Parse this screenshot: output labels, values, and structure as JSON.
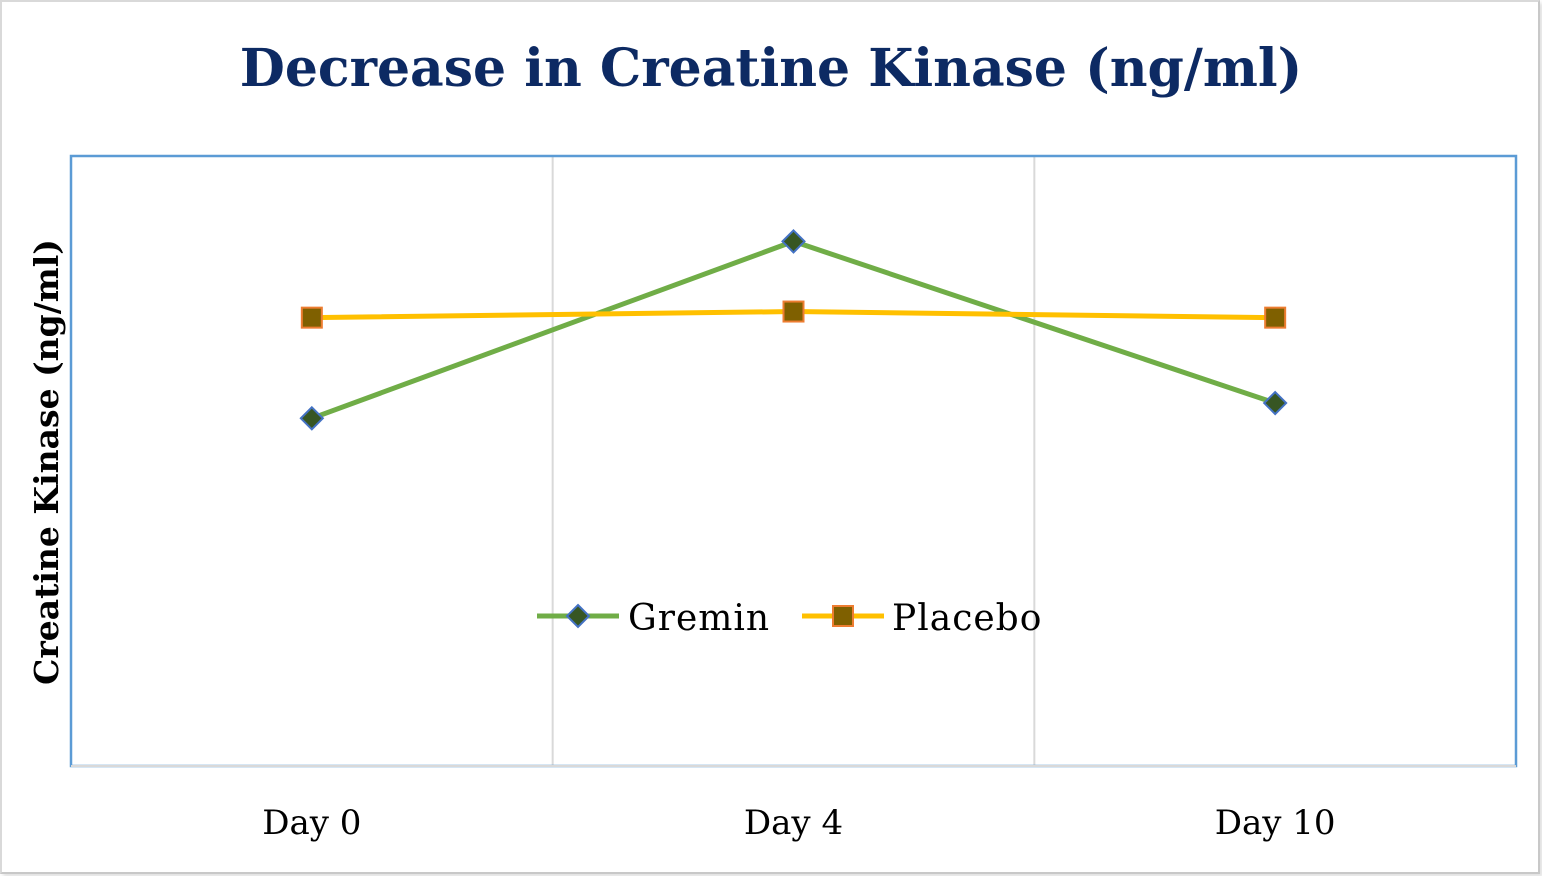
{
  "chart_data": {
    "type": "line",
    "title": "Decrease in Creatine Kinase (ng/ml)",
    "xlabel": "",
    "ylabel": "Creatine Kinase (ng/ml)",
    "categories": [
      "Day 0",
      "Day 4",
      "Day 10"
    ],
    "ylim": [
      0,
      100
    ],
    "grid": "vertical",
    "legend": "inside-bottom-center",
    "series": [
      {
        "name": "Gremin",
        "values": [
          57,
          86,
          59.5
        ],
        "color": "#70ad47",
        "marker": "diamond",
        "marker_fill": "#375623",
        "marker_edge": "#4472c4"
      },
      {
        "name": "Placebo",
        "values": [
          73.5,
          74.5,
          73.5
        ],
        "color": "#ffc000",
        "marker": "square",
        "marker_fill": "#7f6000",
        "marker_edge": "#ed7d31"
      }
    ]
  },
  "colors": {
    "title": "#0d2a63",
    "plot_border": "#5b9bd5",
    "gridline": "#d9d9d9"
  }
}
